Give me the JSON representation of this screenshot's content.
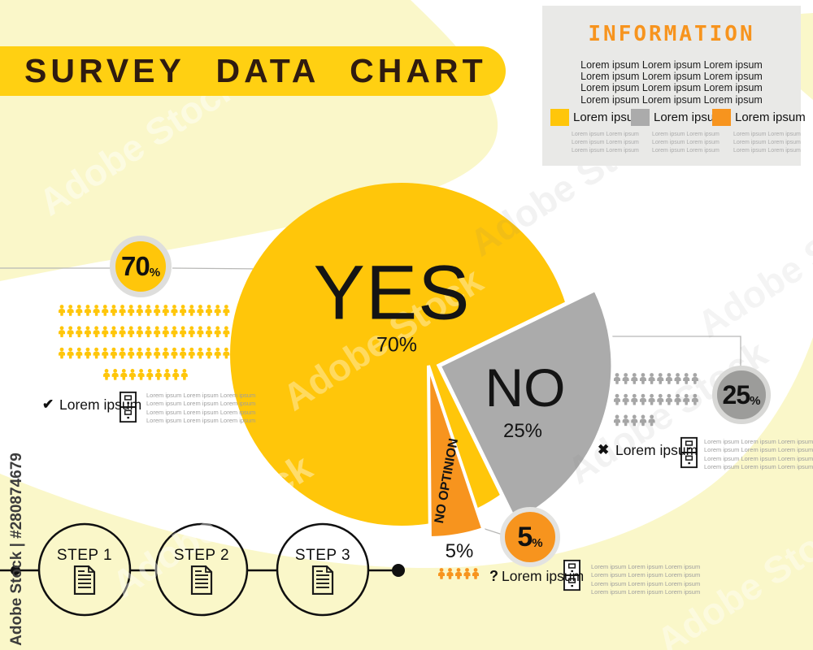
{
  "title_banner": {
    "text": "SURVEY DATA CHART",
    "bg": "#FFD012",
    "text_color": "#2F1B10"
  },
  "watermark": {
    "side_text": "Adobe Stock | #280874679",
    "diagonal_text": "Adobe Stock"
  },
  "info_panel": {
    "title": "INFORMATION",
    "title_color": "#F7941E",
    "body_lines": [
      "Lorem ipsum Lorem ipsum Lorem ipsum",
      "Lorem ipsum Lorem ipsum Lorem ipsum",
      "Lorem ipsum Lorem ipsum Lorem ipsum",
      "Lorem ipsum Lorem ipsum Lorem ipsum"
    ],
    "legend": [
      {
        "label": "Lorem ipsum",
        "color": "#FFC60A",
        "sub_lines": [
          "Lorem ipsum Lorem ipsum",
          "Lorem ipsum Lorem ipsum",
          "Lorem ipsum Lorem ipsum"
        ]
      },
      {
        "label": "Lorem ipsum",
        "color": "#ABABAB",
        "sub_lines": [
          "Lorem ipsum Lorem ipsum",
          "Lorem ipsum Lorem ipsum",
          "Lorem ipsum Lorem ipsum"
        ]
      },
      {
        "label": "Lorem ipsum",
        "color": "#F7941E",
        "sub_lines": [
          "Lorem ipsum Lorem ipsum",
          "Lorem ipsum Lorem ipsum",
          "Lorem ipsum Lorem ipsum"
        ]
      }
    ]
  },
  "chart_data": {
    "type": "pie",
    "title": "SURVEY DATA CHART",
    "legend_position": "top-right",
    "slices": [
      {
        "label": "YES",
        "value": 70,
        "pct_label": "70%",
        "color": "#FFC60A"
      },
      {
        "label": "NO",
        "value": 25,
        "pct_label": "25%",
        "color": "#ABABAB"
      },
      {
        "label": "NO OPTINION",
        "value": 5,
        "pct_label": "5%",
        "color": "#F7941E"
      }
    ],
    "style": "exploded pie; NO and NO OPTINION wedges pulled out to lower-right; each slice also shown as person pictograms (70 yellow, 25 gray, 5 orange)"
  },
  "badges": {
    "yes": {
      "num": "70",
      "pct": "%",
      "fill": "#FFC60A"
    },
    "no": {
      "num": "25",
      "pct": "%",
      "fill": "#9C9C9A"
    },
    "no_opinion": {
      "num": "5",
      "pct": "%",
      "fill": "#F7941E"
    }
  },
  "groups": {
    "yes": {
      "marker": "✔",
      "label": "Lorem ipsum",
      "icon_color": "#FFC60A",
      "icon_rows": [
        20,
        20,
        20,
        10
      ],
      "note_lines": [
        "Lorem ipsum Lorem ipsum Lorem ipsum",
        "Lorem ipsum Lorem ipsum Lorem ipsum",
        "Lorem ipsum Lorem ipsum Lorem ipsum",
        "Lorem ipsum Lorem ipsum Lorem ipsum"
      ]
    },
    "no": {
      "marker": "✖",
      "label": "Lorem ipsum",
      "icon_color": "#A6A6A6",
      "icon_rows": [
        10,
        10,
        5
      ],
      "note_lines": [
        "Lorem ipsum Lorem ipsum Lorem ipsum",
        "Lorem ipsum Lorem ipsum Lorem ipsum",
        "Lorem ipsum Lorem ipsum Lorem ipsum",
        "Lorem ipsum Lorem ipsum Lorem ipsum"
      ]
    },
    "no_opinion": {
      "marker": "?",
      "label": "Lorem ipsum",
      "icon_color": "#F7941E",
      "icon_rows": [
        5
      ],
      "note_lines": [
        "Lorem ipsum Lorem ipsum Lorem ipsum",
        "Lorem ipsum Lorem ipsum Lorem ipsum",
        "Lorem ipsum Lorem ipsum Lorem ipsum",
        "Lorem ipsum Lorem ipsum Lorem ipsum"
      ]
    }
  },
  "steps": {
    "items": [
      {
        "label": "STEP 1"
      },
      {
        "label": "STEP 2"
      },
      {
        "label": "STEP 3"
      }
    ]
  },
  "colors": {
    "pale_yellow": "#FAF7C9",
    "banner_gold": "#FFD012",
    "pie_yellow": "#FFC60A",
    "gray": "#ABABAB",
    "orange": "#F7941E",
    "panel_gray": "#E9E9E7"
  }
}
